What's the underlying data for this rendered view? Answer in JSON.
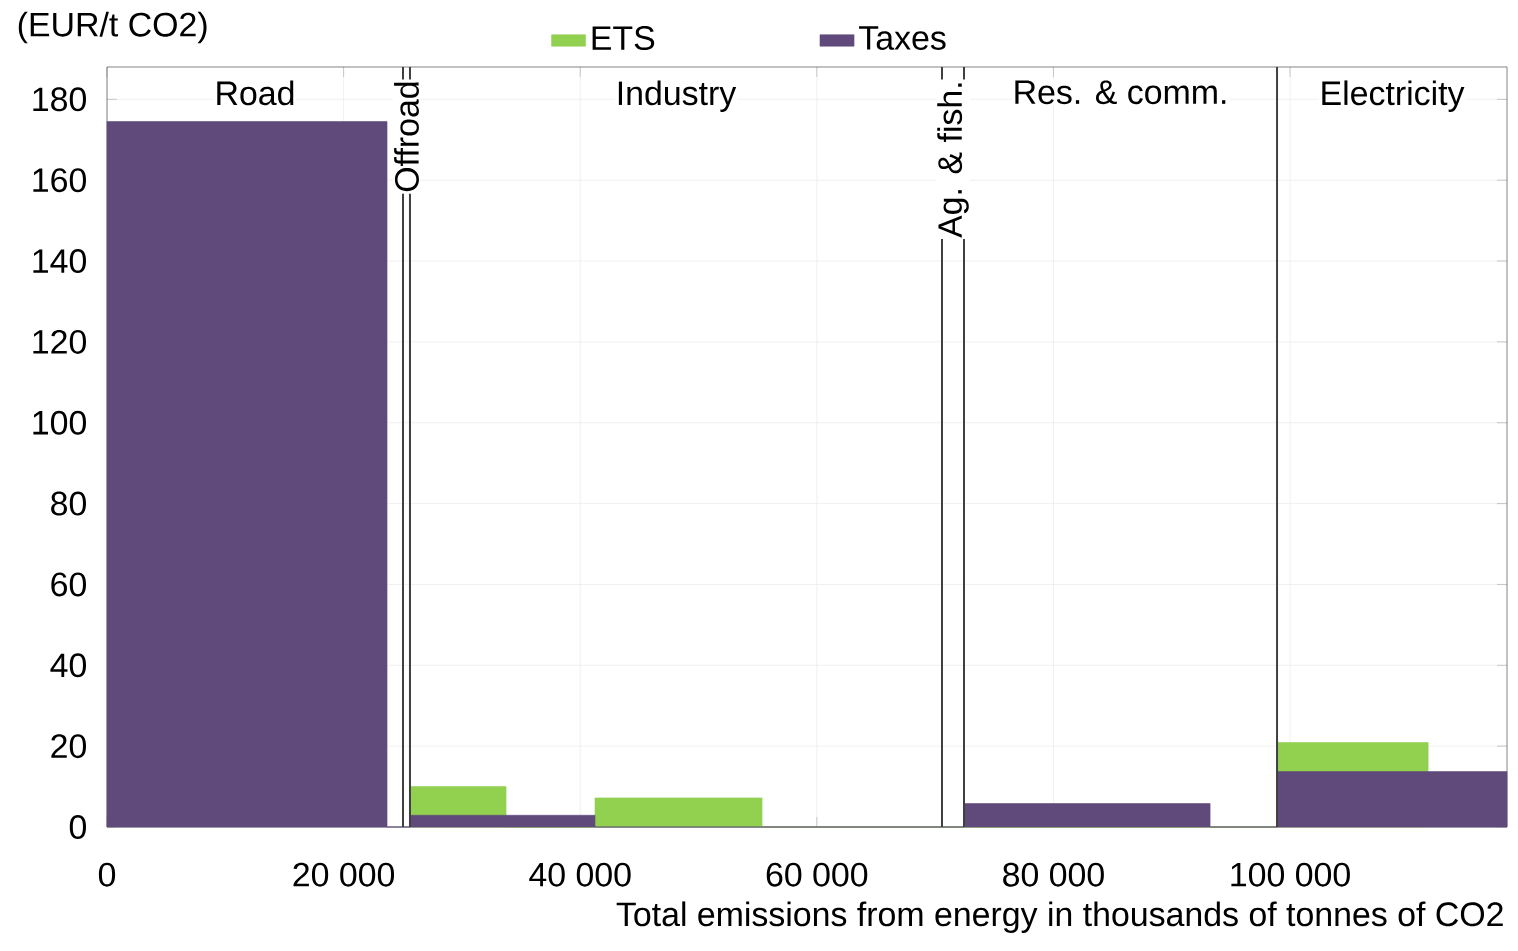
{
  "chart_data": {
    "type": "area",
    "ylabel": "(EUR/t CO2)",
    "xlabel": "Total emissions from energy in thousands of tonnes of CO2",
    "xlim": [
      0,
      118340
    ],
    "ylim": [
      0,
      188
    ],
    "xticks": [
      {
        "value": 0,
        "label": "0"
      },
      {
        "value": 20000,
        "label": "20 000"
      },
      {
        "value": 40000,
        "label": "40 000"
      },
      {
        "value": 60000,
        "label": "60 000"
      },
      {
        "value": 80000,
        "label": "80 000"
      },
      {
        "value": 100000,
        "label": "100 000"
      }
    ],
    "yticks": [
      0,
      20,
      40,
      60,
      80,
      100,
      120,
      140,
      160,
      180
    ],
    "grid": true,
    "legend": "top",
    "series": [
      {
        "name": "ETS",
        "color": "#92d050",
        "x": [
          25610,
          25610,
          33730,
          33730,
          41250,
          41250,
          55370,
          55370,
          98900,
          98900,
          111670,
          111670
        ],
        "values": [
          0,
          10,
          10,
          0,
          0,
          7.2,
          7.2,
          0,
          0,
          20.9,
          20.9,
          0
        ]
      },
      {
        "name": "Taxes",
        "color": "#604a7b",
        "x": [
          0,
          0,
          23670,
          23670,
          25610,
          25610,
          41250,
          41250,
          72440,
          72440,
          93240,
          93240,
          98900,
          98900,
          118340,
          118340
        ],
        "values": [
          0,
          174.5,
          174.5,
          0,
          0,
          2.9,
          2.9,
          0,
          0,
          5.8,
          5.8,
          0,
          0,
          13.7,
          13.7,
          0
        ]
      }
    ],
    "ref_lines": [
      {
        "axis": "x",
        "value": 25020,
        "color": "#404040"
      },
      {
        "axis": "x",
        "value": 25610,
        "color": "#404040"
      },
      {
        "axis": "x",
        "value": 70580,
        "color": "#404040"
      },
      {
        "axis": "x",
        "value": 72440,
        "color": "#404040"
      },
      {
        "axis": "x",
        "value": 98900,
        "color": "#404040"
      }
    ],
    "annotations": [
      "Road",
      "Offroad",
      "Industry",
      "Ag. & fish.",
      "Res. & comm.",
      "Electricity"
    ]
  }
}
